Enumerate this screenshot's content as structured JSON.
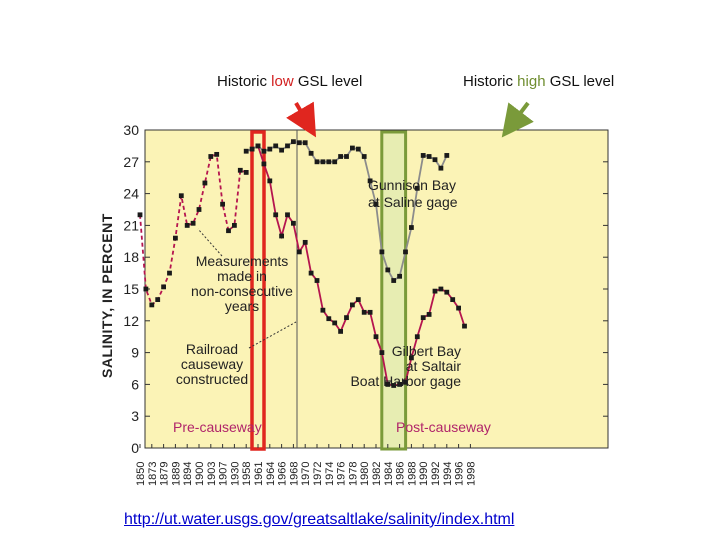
{
  "header": {
    "low_label_pre": "Historic ",
    "low_label_word": "low",
    "low_label_post": " GSL level",
    "high_label_pre": "Historic ",
    "high_label_word": "high",
    "high_label_post": " GSL level"
  },
  "source_url": "http://ut.water.usgs.gov/greatsaltlake/salinity/index.html",
  "colors": {
    "plot_bg": "#fbf3b6",
    "gilbert_series": "#b5154f",
    "gunnison_series": "#8c8c8c",
    "low_marker": "#e0261f",
    "high_marker": "#7a9a3a",
    "high_band_fill": "#e3ebb2"
  },
  "chart_data": {
    "type": "line",
    "title": "",
    "xlabel": "",
    "ylabel": "SALINITY, IN PERCENT",
    "ylim": [
      0,
      30
    ],
    "yticks": [
      0,
      3,
      6,
      9,
      12,
      15,
      18,
      21,
      24,
      27,
      30
    ],
    "categories": [
      "1850",
      "1873",
      "1879",
      "1889",
      "1894",
      "1900",
      "1903",
      "1907",
      "1930",
      "1958",
      "1961",
      "1964",
      "1966",
      "1968",
      "1970",
      "1972",
      "1974",
      "1976",
      "1978",
      "1980",
      "1982",
      "1984",
      "1986",
      "1988",
      "1990",
      "1992",
      "1994",
      "1996",
      "1998"
    ],
    "annotations": {
      "gunnison": [
        "Gunnison Bay",
        "at Saline gage"
      ],
      "gilbert": [
        "Gilbert Bay",
        "at Saltair",
        "Boat Harbor gage"
      ],
      "measurements": [
        "Measurements",
        "made in",
        "non-consecutive",
        "years"
      ],
      "railroad": [
        "Railroad",
        "causeway",
        "constructed"
      ],
      "pre": "Pre-causeway",
      "post": "Post-causeway"
    },
    "highlights": [
      {
        "name": "Historic low GSL level",
        "category": "1961"
      },
      {
        "name": "Historic high GSL level",
        "from": "1984",
        "to": "1986"
      }
    ],
    "series": [
      {
        "name": "Pre-causeway (non-consecutive years)",
        "style": "dashed",
        "points": [
          {
            "i": 0,
            "y": 22.0
          },
          {
            "i": 0.5,
            "y": 15.0
          },
          {
            "i": 1,
            "y": 13.5
          },
          {
            "i": 1.5,
            "y": 14.0
          },
          {
            "i": 2,
            "y": 15.2
          },
          {
            "i": 2.5,
            "y": 16.5
          },
          {
            "i": 3,
            "y": 19.8
          },
          {
            "i": 3.5,
            "y": 23.8
          },
          {
            "i": 4,
            "y": 21.0
          },
          {
            "i": 4.5,
            "y": 21.2
          },
          {
            "i": 5,
            "y": 22.5
          },
          {
            "i": 5.5,
            "y": 25.0
          },
          {
            "i": 6,
            "y": 27.5
          },
          {
            "i": 6.5,
            "y": 27.7
          },
          {
            "i": 7,
            "y": 23.0
          },
          {
            "i": 7.5,
            "y": 20.5
          },
          {
            "i": 8,
            "y": 21.0
          },
          {
            "i": 8.5,
            "y": 26.2
          },
          {
            "i": 9,
            "y": 26.0
          }
        ]
      },
      {
        "name": "Gilbert Bay at Saltair Boat Harbor gage",
        "style": "solid",
        "points": [
          {
            "i": 10,
            "y": 28.5
          },
          {
            "i": 10.5,
            "y": 26.8
          },
          {
            "i": 11,
            "y": 25.2
          },
          {
            "i": 11.5,
            "y": 22.0
          },
          {
            "i": 12,
            "y": 20.0
          },
          {
            "i": 12.5,
            "y": 22.0
          },
          {
            "i": 13,
            "y": 21.2
          },
          {
            "i": 13.5,
            "y": 18.5
          },
          {
            "i": 14,
            "y": 19.4
          },
          {
            "i": 14.5,
            "y": 16.5
          },
          {
            "i": 15,
            "y": 15.8
          },
          {
            "i": 15.5,
            "y": 13.0
          },
          {
            "i": 16,
            "y": 12.2
          },
          {
            "i": 16.5,
            "y": 11.8
          },
          {
            "i": 17,
            "y": 11.0
          },
          {
            "i": 17.5,
            "y": 12.3
          },
          {
            "i": 18,
            "y": 13.5
          },
          {
            "i": 18.5,
            "y": 14.0
          },
          {
            "i": 19,
            "y": 12.8
          },
          {
            "i": 19.5,
            "y": 12.8
          },
          {
            "i": 20,
            "y": 10.5
          },
          {
            "i": 20.5,
            "y": 9.0
          },
          {
            "i": 21,
            "y": 6.0
          },
          {
            "i": 21.5,
            "y": 5.9
          },
          {
            "i": 22,
            "y": 6.0
          },
          {
            "i": 22.5,
            "y": 6.2
          },
          {
            "i": 23,
            "y": 8.5
          },
          {
            "i": 23.5,
            "y": 10.5
          },
          {
            "i": 24,
            "y": 12.3
          },
          {
            "i": 24.5,
            "y": 12.6
          },
          {
            "i": 25,
            "y": 14.8
          },
          {
            "i": 25.5,
            "y": 15.0
          },
          {
            "i": 26,
            "y": 14.7
          },
          {
            "i": 26.5,
            "y": 14.0
          },
          {
            "i": 27,
            "y": 13.2
          },
          {
            "i": 27.5,
            "y": 11.5
          }
        ]
      },
      {
        "name": "Gunnison Bay at Saline gage",
        "style": "solid",
        "points": [
          {
            "i": 9,
            "y": 28.0
          },
          {
            "i": 9.5,
            "y": 28.2
          },
          {
            "i": 10,
            "y": 28.5
          },
          {
            "i": 10.5,
            "y": 28.0
          },
          {
            "i": 11,
            "y": 28.2
          },
          {
            "i": 11.5,
            "y": 28.5
          },
          {
            "i": 12,
            "y": 28.1
          },
          {
            "i": 12.5,
            "y": 28.5
          },
          {
            "i": 13,
            "y": 28.9
          },
          {
            "i": 13.5,
            "y": 28.8
          },
          {
            "i": 14,
            "y": 28.8
          },
          {
            "i": 14.5,
            "y": 27.8
          },
          {
            "i": 15,
            "y": 27.0
          },
          {
            "i": 15.5,
            "y": 27.0
          },
          {
            "i": 16,
            "y": 27.0
          },
          {
            "i": 16.5,
            "y": 27.0
          },
          {
            "i": 17,
            "y": 27.5
          },
          {
            "i": 17.5,
            "y": 27.5
          },
          {
            "i": 18,
            "y": 28.3
          },
          {
            "i": 18.5,
            "y": 28.2
          },
          {
            "i": 19,
            "y": 27.5
          },
          {
            "i": 19.5,
            "y": 25.2
          },
          {
            "i": 20,
            "y": 23.0
          },
          {
            "i": 20.5,
            "y": 18.5
          },
          {
            "i": 21,
            "y": 16.8
          },
          {
            "i": 21.5,
            "y": 15.8
          },
          {
            "i": 22,
            "y": 16.2
          },
          {
            "i": 22.5,
            "y": 18.5
          },
          {
            "i": 23,
            "y": 20.8
          },
          {
            "i": 23.5,
            "y": 24.5
          },
          {
            "i": 24,
            "y": 27.6
          },
          {
            "i": 24.5,
            "y": 27.5
          },
          {
            "i": 25,
            "y": 27.2
          },
          {
            "i": 25.5,
            "y": 26.4
          },
          {
            "i": 26,
            "y": 27.6
          }
        ]
      }
    ]
  }
}
